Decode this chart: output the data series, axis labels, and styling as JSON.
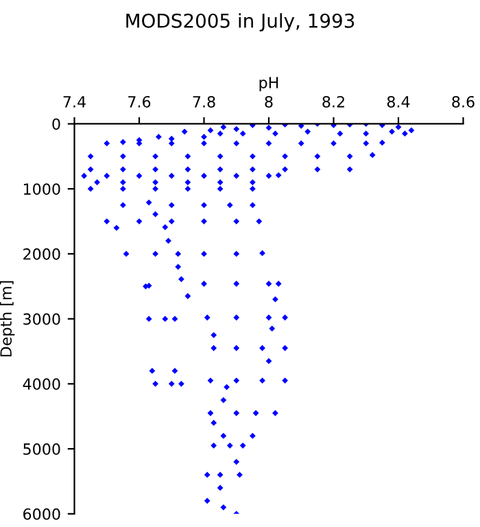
{
  "chart_data": {
    "type": "scatter",
    "title": "MODS2005 in July, 1993",
    "xlabel": "pH",
    "ylabel": "Depth [m]",
    "xlim": [
      7.4,
      8.6
    ],
    "ylim": [
      6000,
      0
    ],
    "xticks": [
      7.4,
      7.6,
      7.8,
      8,
      8.2,
      8.4,
      8.6
    ],
    "yticks": [
      0,
      1000,
      2000,
      3000,
      4000,
      5000,
      6000
    ],
    "grid": false,
    "marker": "diamond",
    "series": [
      {
        "color": "#0000ff",
        "x": [
          7.82,
          7.86,
          7.9,
          7.95,
          8.0,
          8.05,
          8.1,
          8.15,
          8.2,
          8.25,
          8.3,
          8.35,
          8.4,
          8.44,
          8.42,
          8.38,
          8.3,
          8.22,
          8.12,
          8.02,
          7.92,
          7.85,
          7.8,
          7.74,
          7.7,
          7.66,
          7.6,
          7.55,
          7.5,
          7.6,
          7.7,
          7.8,
          7.9,
          8.0,
          8.1,
          8.2,
          8.3,
          8.35,
          7.45,
          7.55,
          7.65,
          7.75,
          7.85,
          7.95,
          8.05,
          8.15,
          8.25,
          8.32,
          7.45,
          7.55,
          7.65,
          7.75,
          7.85,
          7.95,
          8.05,
          8.15,
          8.25,
          7.43,
          7.5,
          7.6,
          7.7,
          7.8,
          7.9,
          8.0,
          8.03,
          7.47,
          7.55,
          7.65,
          7.75,
          7.85,
          7.95,
          7.45,
          7.55,
          7.65,
          7.75,
          7.85,
          7.95,
          7.55,
          7.63,
          7.7,
          7.8,
          7.88,
          7.95,
          7.65,
          7.5,
          7.6,
          7.7,
          7.8,
          7.9,
          7.97,
          7.68,
          7.53,
          7.69,
          7.56,
          7.65,
          7.72,
          7.8,
          7.9,
          7.98,
          7.72,
          7.73,
          7.62,
          7.63,
          7.8,
          7.9,
          8.0,
          8.03,
          7.75,
          8.02,
          7.63,
          7.68,
          7.71,
          7.81,
          7.9,
          8.0,
          8.05,
          8.01,
          7.83,
          7.83,
          7.9,
          7.98,
          8.05,
          8.0,
          7.64,
          7.71,
          7.65,
          7.7,
          7.73,
          7.82,
          7.9,
          7.98,
          8.05,
          7.87,
          7.86,
          7.82,
          7.9,
          7.96,
          8.02,
          7.83,
          7.86,
          7.95,
          7.83,
          7.88,
          7.92,
          7.9,
          7.81,
          7.85,
          7.91,
          7.85,
          7.81,
          7.86,
          7.9
        ],
        "values": [
          100,
          50,
          80,
          20,
          60,
          10,
          30,
          0,
          20,
          10,
          0,
          20,
          50,
          100,
          150,
          120,
          150,
          150,
          120,
          150,
          150,
          150,
          200,
          120,
          230,
          200,
          250,
          280,
          300,
          300,
          300,
          300,
          300,
          300,
          300,
          300,
          300,
          290,
          500,
          500,
          500,
          500,
          500,
          500,
          500,
          500,
          500,
          480,
          700,
          700,
          700,
          700,
          700,
          700,
          700,
          700,
          700,
          800,
          800,
          800,
          800,
          800,
          800,
          800,
          790,
          900,
          900,
          900,
          900,
          900,
          900,
          1000,
          1000,
          1000,
          1000,
          1000,
          1000,
          1250,
          1210,
          1250,
          1250,
          1250,
          1250,
          1390,
          1500,
          1500,
          1500,
          1500,
          1500,
          1500,
          1590,
          1600,
          1800,
          2000,
          2000,
          2000,
          2000,
          2000,
          1990,
          2200,
          2390,
          2500,
          2490,
          2460,
          2460,
          2460,
          2460,
          2650,
          2700,
          3000,
          3000,
          3000,
          2980,
          2980,
          2980,
          2980,
          3150,
          3250,
          3450,
          3450,
          3450,
          3450,
          3650,
          3800,
          3800,
          4000,
          4000,
          4000,
          3950,
          3950,
          3950,
          3950,
          4050,
          4250,
          4450,
          4450,
          4450,
          4450,
          4600,
          4800,
          4800,
          4950,
          4950,
          4950,
          5200,
          5400,
          5400,
          5400,
          5600,
          5800,
          5900,
          6000
        ]
      }
    ]
  }
}
